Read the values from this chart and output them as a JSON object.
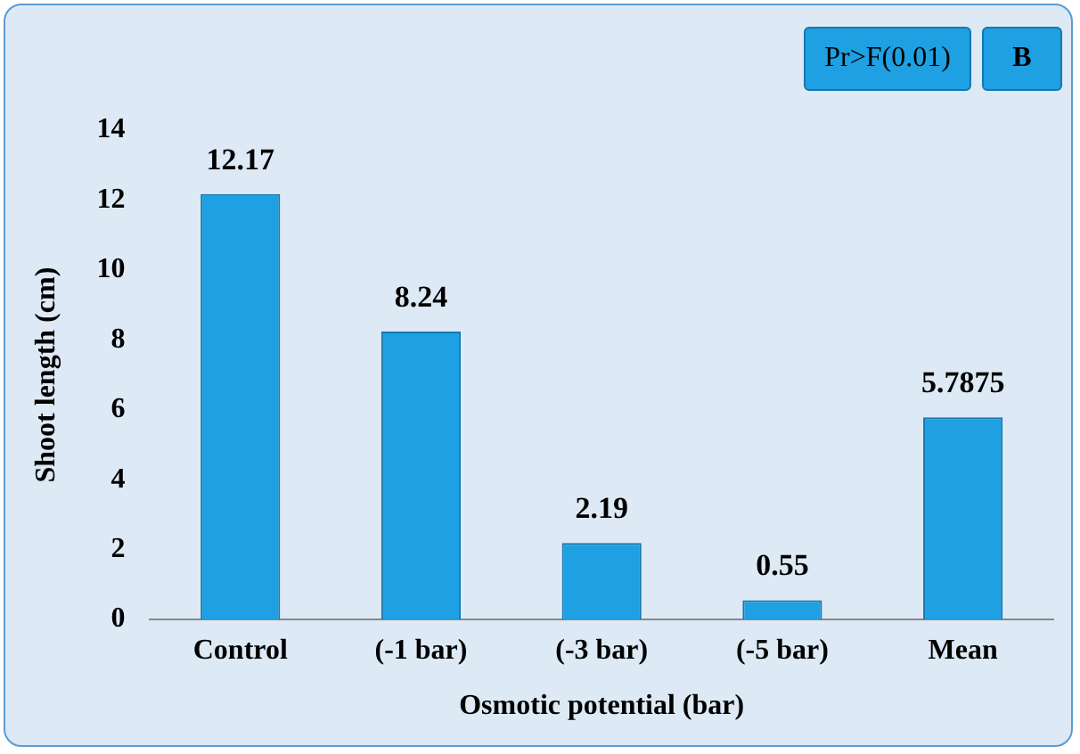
{
  "chart_data": {
    "type": "bar",
    "xlabel": "Osmotic potential (bar)",
    "ylabel": "Shoot length (cm)",
    "categories": [
      "Control",
      "(-1 bar)",
      "(-3 bar)",
      "(-5 bar)",
      "Mean"
    ],
    "values": [
      12.17,
      8.24,
      2.19,
      0.55,
      5.7875
    ],
    "color": "#1ea0e2",
    "ylim": [
      0,
      14
    ],
    "yticks": [
      0,
      2,
      4,
      6,
      8,
      10,
      12,
      14
    ],
    "grid": false,
    "legend": false,
    "data_labels": true,
    "annotations": [
      "Pr>F(0.01)",
      "B"
    ]
  }
}
